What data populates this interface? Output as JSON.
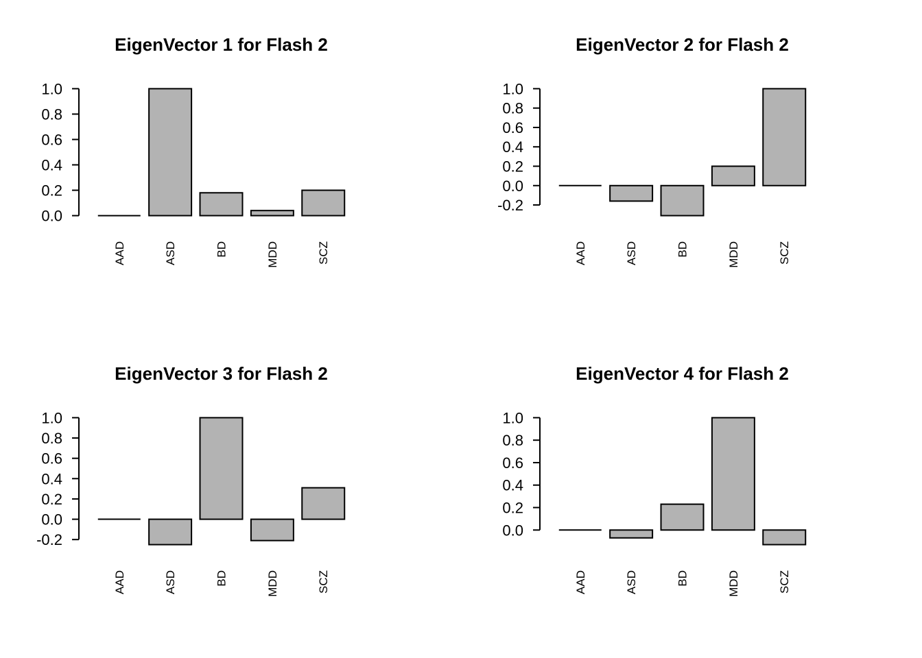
{
  "figure": {
    "layout": "2x2-grid",
    "background": "#ffffff",
    "grid_lines": false,
    "legend": null
  },
  "colors": {
    "bar_fill": "#b3b3b3",
    "bar_stroke": "#000000",
    "axis": "#000000",
    "text": "#000000"
  },
  "chart_data": [
    {
      "type": "bar",
      "title": "EigenVector 1 for Flash 2",
      "categories": [
        "AAD",
        "ASD",
        "BD",
        "MDD",
        "SCZ"
      ],
      "values": [
        0.0,
        1.0,
        0.18,
        0.04,
        0.2
      ],
      "ytick_labels": [
        "0.0",
        "0.2",
        "0.4",
        "0.6",
        "0.8",
        "1.0"
      ],
      "ylim": [
        0.0,
        1.0
      ],
      "xlabel": "",
      "ylabel": "",
      "grid": false,
      "legend": null
    },
    {
      "type": "bar",
      "title": "EigenVector 2 for Flash 2",
      "categories": [
        "AAD",
        "ASD",
        "BD",
        "MDD",
        "SCZ"
      ],
      "values": [
        0.0,
        -0.16,
        -0.31,
        0.2,
        1.0
      ],
      "ytick_labels": [
        "-0.2",
        "0.0",
        "0.2",
        "0.4",
        "0.6",
        "0.8",
        "1.0"
      ],
      "ylim": [
        -0.31,
        1.0
      ],
      "xlabel": "",
      "ylabel": "",
      "grid": false,
      "legend": null
    },
    {
      "type": "bar",
      "title": "EigenVector 3 for Flash 2",
      "categories": [
        "AAD",
        "ASD",
        "BD",
        "MDD",
        "SCZ"
      ],
      "values": [
        0.0,
        -0.25,
        1.0,
        -0.21,
        0.31
      ],
      "ytick_labels": [
        "-0.2",
        "0.0",
        "0.2",
        "0.4",
        "0.6",
        "0.8",
        "1.0"
      ],
      "ylim": [
        -0.25,
        1.0
      ],
      "xlabel": "",
      "ylabel": "",
      "grid": false,
      "legend": null
    },
    {
      "type": "bar",
      "title": "EigenVector 4 for Flash 2",
      "categories": [
        "AAD",
        "ASD",
        "BD",
        "MDD",
        "SCZ"
      ],
      "values": [
        0.0,
        -0.07,
        0.23,
        1.0,
        -0.13
      ],
      "ytick_labels": [
        "0.0",
        "0.2",
        "0.4",
        "0.6",
        "0.8",
        "1.0"
      ],
      "ylim": [
        -0.13,
        1.0
      ],
      "xlabel": "",
      "ylabel": "",
      "grid": false,
      "legend": null
    }
  ]
}
